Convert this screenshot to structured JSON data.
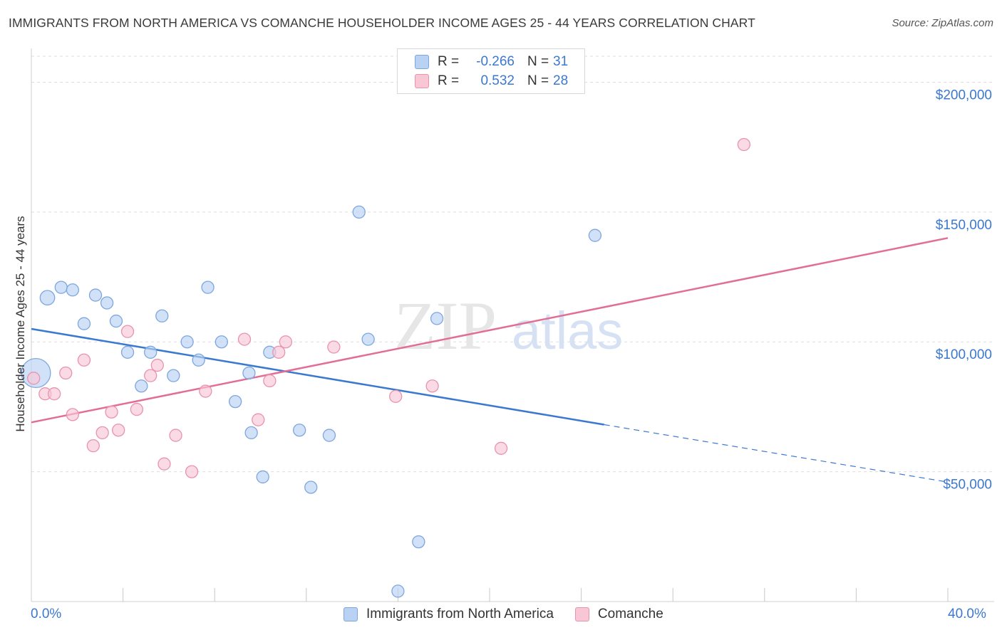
{
  "title": "IMMIGRANTS FROM NORTH AMERICA VS COMANCHE HOUSEHOLDER INCOME AGES 25 - 44 YEARS CORRELATION CHART",
  "source": "Source: ZipAtlas.com",
  "colors": {
    "blue": "#3b78d0",
    "blue_fill": "#b9d2f4",
    "pink": "#e26d95",
    "pink_fill": "#f8c6d5",
    "axis_label": "#3b78d0",
    "grid": "#dddddd"
  },
  "legend": {
    "rows": [
      {
        "r_label": "R =",
        "r_value": "-0.266",
        "n_label": "N =",
        "n_value": "31"
      },
      {
        "r_label": "R =",
        "r_value": "0.532",
        "n_label": "N =",
        "n_value": "28"
      }
    ]
  },
  "chart_data": {
    "type": "scatter",
    "title": "IMMIGRANTS FROM NORTH AMERICA VS COMANCHE HOUSEHOLDER INCOME AGES 25 - 44 YEARS CORRELATION CHART",
    "xlabel": "",
    "ylabel": "Householder Income Ages 25 - 44 years",
    "x_unit": "%",
    "xlim": [
      0,
      40
    ],
    "ylim": [
      0,
      210000
    ],
    "x_tick_labels": [
      "0.0%",
      "40.0%"
    ],
    "y_ticks": [
      50000,
      100000,
      150000,
      200000
    ],
    "y_tick_labels": [
      "$50,000",
      "$100,000",
      "$150,000",
      "$200,000"
    ],
    "watermark": {
      "zip": "ZIP",
      "atlas": "atlas"
    },
    "series": [
      {
        "name": "Immigrants from North America",
        "color": "blue",
        "r": -0.266,
        "n": 31,
        "trend": {
          "x0": 0,
          "y0": 105000,
          "x_solid_end": 25.0,
          "x1": 40,
          "y1": 46000
        },
        "points": [
          {
            "x": 0.2,
            "y": 88000,
            "s": 2.4
          },
          {
            "x": 0.7,
            "y": 117000,
            "s": 1.2
          },
          {
            "x": 1.3,
            "y": 121000,
            "s": 1
          },
          {
            "x": 1.8,
            "y": 120000,
            "s": 1
          },
          {
            "x": 2.3,
            "y": 107000,
            "s": 1
          },
          {
            "x": 2.8,
            "y": 118000,
            "s": 1
          },
          {
            "x": 3.3,
            "y": 115000,
            "s": 1
          },
          {
            "x": 3.7,
            "y": 108000,
            "s": 1
          },
          {
            "x": 4.2,
            "y": 96000,
            "s": 1
          },
          {
            "x": 4.8,
            "y": 83000,
            "s": 1
          },
          {
            "x": 5.2,
            "y": 96000,
            "s": 1
          },
          {
            "x": 5.7,
            "y": 110000,
            "s": 1
          },
          {
            "x": 6.2,
            "y": 87000,
            "s": 1
          },
          {
            "x": 6.8,
            "y": 100000,
            "s": 1
          },
          {
            "x": 7.3,
            "y": 93000,
            "s": 1
          },
          {
            "x": 7.7,
            "y": 121000,
            "s": 1
          },
          {
            "x": 8.3,
            "y": 100000,
            "s": 1
          },
          {
            "x": 8.9,
            "y": 77000,
            "s": 1
          },
          {
            "x": 9.5,
            "y": 88000,
            "s": 1
          },
          {
            "x": 9.6,
            "y": 65000,
            "s": 1
          },
          {
            "x": 10.1,
            "y": 48000,
            "s": 1
          },
          {
            "x": 10.4,
            "y": 96000,
            "s": 1
          },
          {
            "x": 11.7,
            "y": 66000,
            "s": 1
          },
          {
            "x": 12.2,
            "y": 44000,
            "s": 1
          },
          {
            "x": 13.0,
            "y": 64000,
            "s": 1
          },
          {
            "x": 14.3,
            "y": 150000,
            "s": 1
          },
          {
            "x": 14.7,
            "y": 101000,
            "s": 1
          },
          {
            "x": 16.0,
            "y": 4000,
            "s": 1
          },
          {
            "x": 16.9,
            "y": 23000,
            "s": 1
          },
          {
            "x": 17.7,
            "y": 109000,
            "s": 1
          },
          {
            "x": 24.6,
            "y": 141000,
            "s": 1
          }
        ]
      },
      {
        "name": "Comanche",
        "color": "pink",
        "r": 0.532,
        "n": 28,
        "trend": {
          "x0": 0,
          "y0": 69000,
          "x1": 40,
          "y1": 140000
        },
        "points": [
          {
            "x": 0.1,
            "y": 86000,
            "s": 1
          },
          {
            "x": 0.6,
            "y": 80000,
            "s": 1
          },
          {
            "x": 1.0,
            "y": 80000,
            "s": 1
          },
          {
            "x": 1.5,
            "y": 88000,
            "s": 1
          },
          {
            "x": 1.8,
            "y": 72000,
            "s": 1
          },
          {
            "x": 2.3,
            "y": 93000,
            "s": 1
          },
          {
            "x": 2.7,
            "y": 60000,
            "s": 1
          },
          {
            "x": 3.1,
            "y": 65000,
            "s": 1
          },
          {
            "x": 3.5,
            "y": 73000,
            "s": 1
          },
          {
            "x": 3.8,
            "y": 66000,
            "s": 1
          },
          {
            "x": 4.2,
            "y": 104000,
            "s": 1
          },
          {
            "x": 4.6,
            "y": 74000,
            "s": 1
          },
          {
            "x": 5.2,
            "y": 87000,
            "s": 1
          },
          {
            "x": 5.5,
            "y": 91000,
            "s": 1
          },
          {
            "x": 5.8,
            "y": 53000,
            "s": 1
          },
          {
            "x": 6.3,
            "y": 64000,
            "s": 1
          },
          {
            "x": 7.0,
            "y": 50000,
            "s": 1
          },
          {
            "x": 7.6,
            "y": 81000,
            "s": 1
          },
          {
            "x": 9.3,
            "y": 101000,
            "s": 1
          },
          {
            "x": 9.9,
            "y": 70000,
            "s": 1
          },
          {
            "x": 10.4,
            "y": 85000,
            "s": 1
          },
          {
            "x": 10.8,
            "y": 96000,
            "s": 1
          },
          {
            "x": 11.1,
            "y": 100000,
            "s": 1
          },
          {
            "x": 13.2,
            "y": 98000,
            "s": 1
          },
          {
            "x": 15.9,
            "y": 79000,
            "s": 1
          },
          {
            "x": 17.5,
            "y": 83000,
            "s": 1
          },
          {
            "x": 20.5,
            "y": 59000,
            "s": 1
          },
          {
            "x": 31.1,
            "y": 176000,
            "s": 1
          }
        ]
      }
    ]
  }
}
